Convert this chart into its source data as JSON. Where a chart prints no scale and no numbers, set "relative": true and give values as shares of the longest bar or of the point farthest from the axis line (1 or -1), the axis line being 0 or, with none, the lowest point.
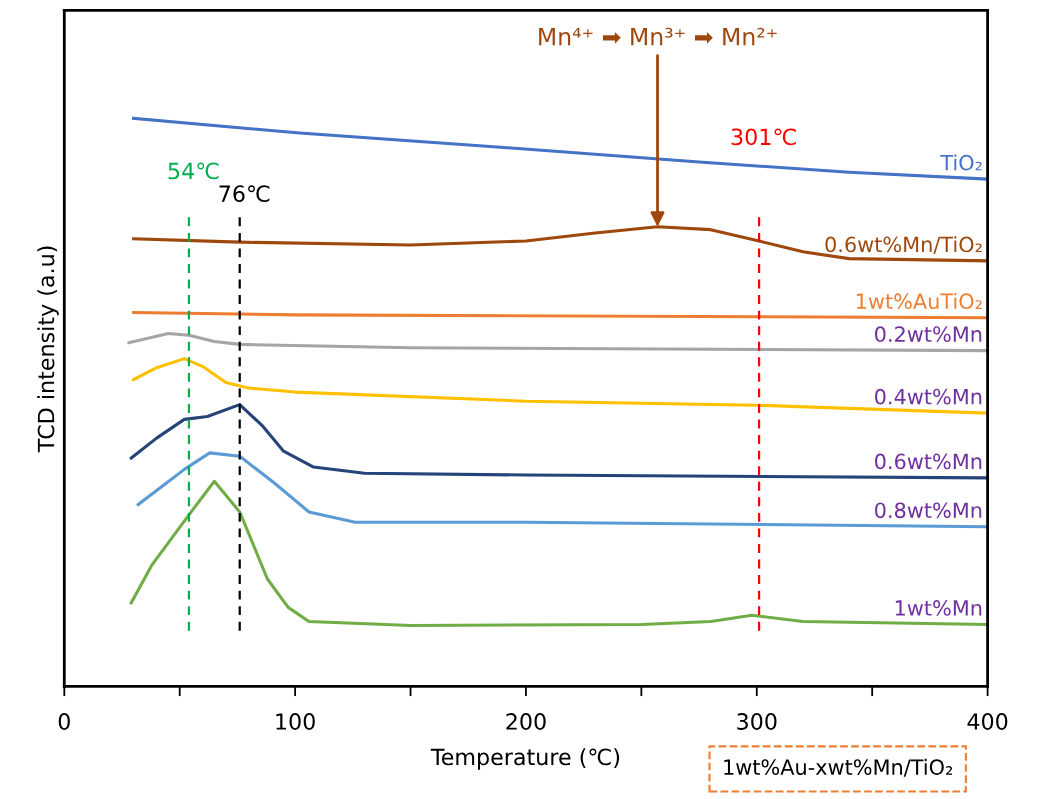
{
  "chart_data": {
    "type": "line",
    "relative": true,
    "xlabel": "Temperature (℃)",
    "ylabel": "TCD intensity (a.u)",
    "xlim": [
      0,
      400
    ],
    "xticks": [
      0,
      {
        "value": 50,
        "label": null
      },
      100,
      {
        "value": 150,
        "label": null
      },
      200,
      {
        "value": 250,
        "label": null
      },
      300,
      {
        "value": 350,
        "label": null
      },
      400
    ],
    "legend": false,
    "grid": false,
    "marker": "none",
    "line_style": "solid",
    "series": [
      {
        "name": "TiO₂",
        "color": "#4472c4",
        "x": [
          30,
          102,
          189,
          275,
          340,
          400
        ],
        "values": [
          1.0,
          0.974,
          0.949,
          0.923,
          0.905,
          0.893
        ]
      },
      {
        "name": "0.6wt%Mn/TiO₂",
        "color": "#9e480e",
        "x": [
          30,
          76,
          150,
          200,
          230,
          257,
          280,
          301,
          320,
          340,
          400
        ],
        "values": [
          0.788,
          0.782,
          0.777,
          0.784,
          0.798,
          0.809,
          0.804,
          0.784,
          0.765,
          0.753,
          0.749
        ]
      },
      {
        "name": "1wt%AuTiO₂",
        "color": "#ed7d31",
        "x": [
          30,
          100,
          400
        ],
        "values": [
          0.658,
          0.654,
          0.649
        ]
      },
      {
        "name": "0.2wt%Mn",
        "color": "#a5a5a5",
        "x": [
          28,
          45,
          54,
          65,
          76,
          150,
          400
        ],
        "values": [
          0.605,
          0.621,
          0.618,
          0.607,
          0.602,
          0.596,
          0.591
        ]
      },
      {
        "name": "0.4wt%Mn",
        "color": "#ffc000",
        "x": [
          30,
          40,
          52,
          60,
          70,
          80,
          100,
          200,
          300,
          400
        ],
        "values": [
          0.54,
          0.561,
          0.577,
          0.563,
          0.535,
          0.525,
          0.518,
          0.502,
          0.495,
          0.481
        ]
      },
      {
        "name": "0.6wt%Mn",
        "color": "#264478",
        "x": [
          29,
          40,
          52,
          62,
          76,
          86,
          95,
          108,
          130,
          200,
          400
        ],
        "values": [
          0.402,
          0.437,
          0.47,
          0.475,
          0.496,
          0.458,
          0.414,
          0.386,
          0.375,
          0.372,
          0.367
        ]
      },
      {
        "name": "0.8wt%Mn",
        "color": "#5b9bd5",
        "x": [
          32,
          42,
          52,
          63,
          76,
          91,
          106,
          126,
          200,
          400
        ],
        "values": [
          0.32,
          0.351,
          0.382,
          0.411,
          0.405,
          0.358,
          0.307,
          0.289,
          0.289,
          0.281
        ]
      },
      {
        "name": "1wt%Mn",
        "color": "#70ad47",
        "x": [
          29,
          38,
          54,
          65,
          76,
          88,
          97,
          106,
          150,
          250,
          280,
          298,
          320,
          400
        ],
        "values": [
          0.147,
          0.214,
          0.302,
          0.361,
          0.307,
          0.189,
          0.139,
          0.114,
          0.107,
          0.109,
          0.114,
          0.125,
          0.114,
          0.109
        ]
      }
    ],
    "ref_lines": [
      {
        "axis": "x",
        "value": 54,
        "label": "54℃",
        "color": "#00b050",
        "line_style": "dashed"
      },
      {
        "axis": "x",
        "value": 76,
        "label": "76℃",
        "color": "#000000",
        "line_style": "dashed"
      },
      {
        "axis": "x",
        "value": 301,
        "label": "301℃",
        "color": "#ff0000",
        "line_style": "dashed"
      }
    ],
    "annotations": [
      {
        "text": "Mn⁴⁺ ➡ Mn³⁺ ➡ Mn²⁺",
        "x": 257,
        "y": 0.809
      },
      "1wt%Au-xwt%Mn/TiO₂"
    ]
  }
}
